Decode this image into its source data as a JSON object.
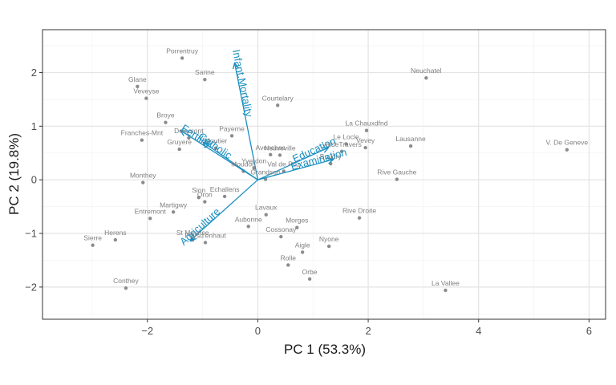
{
  "chart_data": {
    "type": "scatter",
    "subtype": "pca-biplot",
    "xlabel": "PC 1 (53.3%)",
    "ylabel": "PC 2 (19.8%)",
    "xlim": [
      -3.9,
      6.3
    ],
    "ylim": [
      -2.6,
      2.8
    ],
    "x_ticks": [
      -2,
      0,
      2,
      4,
      6
    ],
    "y_ticks": [
      -2,
      -1,
      0,
      1,
      2
    ],
    "grid": true,
    "point_color": "#8c8c8c",
    "vector_color": "#1b8fc1",
    "points": [
      {
        "label": "Courtelary",
        "x": 0.36,
        "y": 1.39
      },
      {
        "label": "Delemont",
        "x": -1.25,
        "y": 0.78
      },
      {
        "label": "Franches-Mnt",
        "x": -2.1,
        "y": 0.74
      },
      {
        "label": "Moutier",
        "x": -0.76,
        "y": 0.59
      },
      {
        "label": "Neuveville",
        "x": 0.4,
        "y": 0.46
      },
      {
        "label": "Porrentruy",
        "x": -1.37,
        "y": 2.27
      },
      {
        "label": "Broye",
        "x": -1.67,
        "y": 1.07
      },
      {
        "label": "Glane",
        "x": -2.18,
        "y": 1.74
      },
      {
        "label": "Gruyere",
        "x": -1.42,
        "y": 0.57
      },
      {
        "label": "Sarine",
        "x": -0.96,
        "y": 1.87
      },
      {
        "label": "Veveyse",
        "x": -2.02,
        "y": 1.52
      },
      {
        "label": "Aigle",
        "x": 0.81,
        "y": -1.35
      },
      {
        "label": "Aubonne",
        "x": -0.17,
        "y": -0.87
      },
      {
        "label": "Avenches",
        "x": 0.23,
        "y": 0.47
      },
      {
        "label": "Cossonay",
        "x": 0.42,
        "y": -1.06
      },
      {
        "label": "Echallens",
        "x": -0.6,
        "y": -0.31
      },
      {
        "label": "Grandson",
        "x": 0.14,
        "y": 0.01
      },
      {
        "label": "Lausanne",
        "x": 2.77,
        "y": 0.63
      },
      {
        "label": "La Vallee",
        "x": 3.4,
        "y": -2.06
      },
      {
        "label": "Lavaux",
        "x": 0.15,
        "y": -0.65
      },
      {
        "label": "Morges",
        "x": 0.71,
        "y": -0.89
      },
      {
        "label": "Moudon",
        "x": -0.26,
        "y": 0.16
      },
      {
        "label": "Nyone",
        "x": 1.29,
        "y": -1.24
      },
      {
        "label": "Orbe",
        "x": 0.94,
        "y": -1.85
      },
      {
        "label": "Oron",
        "x": -0.96,
        "y": -0.41
      },
      {
        "label": "Payerne",
        "x": -0.47,
        "y": 0.82
      },
      {
        "label": "Paysd'enhaut",
        "x": -0.95,
        "y": -1.17
      },
      {
        "label": "Rolle",
        "x": 0.55,
        "y": -1.59
      },
      {
        "label": "Vevey",
        "x": 1.95,
        "y": 0.6
      },
      {
        "label": "Yverdon",
        "x": -0.07,
        "y": 0.22
      },
      {
        "label": "Conthey",
        "x": -2.39,
        "y": -2.02
      },
      {
        "label": "Entremont",
        "x": -1.95,
        "y": -0.72
      },
      {
        "label": "Herens",
        "x": -2.58,
        "y": -1.12
      },
      {
        "label": "Martigwy",
        "x": -1.53,
        "y": -0.6
      },
      {
        "label": "Monthey",
        "x": -2.08,
        "y": -0.05
      },
      {
        "label": "St Maurice",
        "x": -1.18,
        "y": -1.12
      },
      {
        "label": "Sierre",
        "x": -2.99,
        "y": -1.22
      },
      {
        "label": "Sion",
        "x": -1.07,
        "y": -0.33
      },
      {
        "label": "Boudry",
        "x": 1.32,
        "y": 0.3
      },
      {
        "label": "La Chauxdfnd",
        "x": 1.97,
        "y": 0.92
      },
      {
        "label": "Le Locle",
        "x": 1.6,
        "y": 0.67
      },
      {
        "label": "Neuchatel",
        "x": 3.05,
        "y": 1.9
      },
      {
        "label": "Val de Ruz",
        "x": 0.47,
        "y": 0.16
      },
      {
        "label": "ValdeTravers",
        "x": 1.52,
        "y": 0.53
      },
      {
        "label": "V. De Geneve",
        "x": 5.6,
        "y": 0.56
      },
      {
        "label": "Rive Droite",
        "x": 1.84,
        "y": -0.71
      },
      {
        "label": "Rive Gauche",
        "x": 2.52,
        "y": 0.01
      }
    ],
    "vectors": [
      {
        "label": "Fertility",
        "x": -1.4,
        "y": 0.92
      },
      {
        "label": "Agriculture",
        "x": -1.22,
        "y": -1.13
      },
      {
        "label": "Examination",
        "x": 1.37,
        "y": 0.38
      },
      {
        "label": "Education",
        "x": 1.28,
        "y": 0.6
      },
      {
        "label": "Catholic",
        "x": -0.99,
        "y": 0.7
      },
      {
        "label": "Infant.Mortality",
        "x": -0.42,
        "y": 2.18
      }
    ]
  }
}
